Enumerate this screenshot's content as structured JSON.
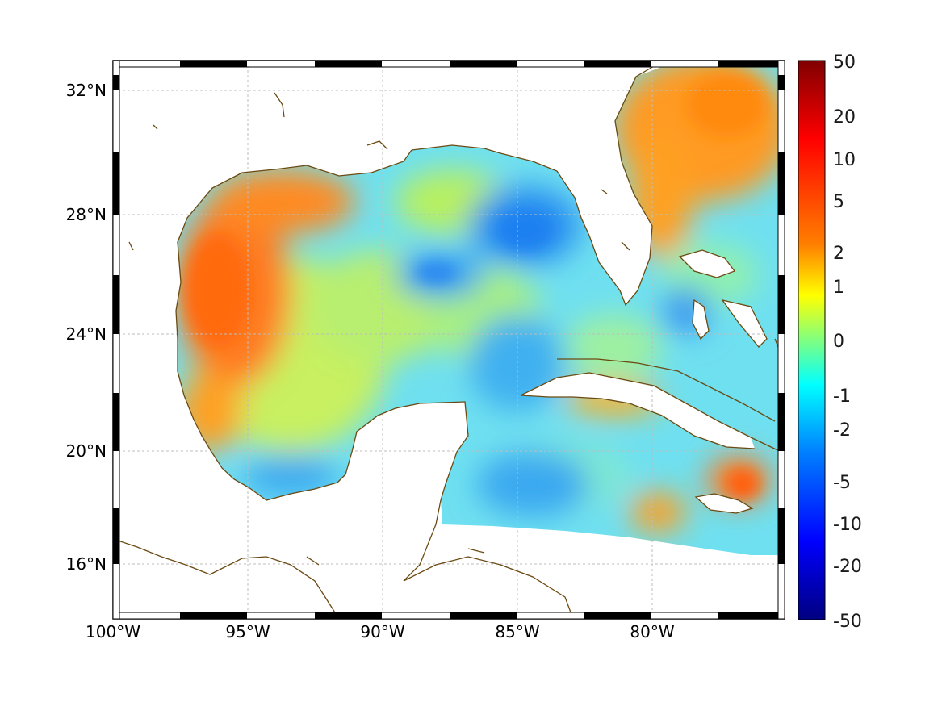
{
  "map": {
    "lon_labels": [
      "100°W",
      "95°W",
      "90°W",
      "85°W",
      "80°W"
    ],
    "lat_labels": [
      "32°N",
      "28°N",
      "24°N",
      "20°N",
      "16°N"
    ]
  },
  "colorbar": {
    "labels": [
      "50",
      "20",
      "10",
      "5",
      "2",
      "1",
      "0",
      "-1",
      "-2",
      "-5",
      "-10",
      "-20",
      "-50"
    ],
    "colors": [
      "#800000",
      "#ff0000",
      "#ff8000",
      "#ffff00",
      "#00ffff",
      "#0080ff",
      "#0000ff",
      "#000080"
    ]
  },
  "style": {
    "coast_color": "#6b4a12",
    "grid_color": "#bdbdbd",
    "land_color": "#ffffff"
  }
}
